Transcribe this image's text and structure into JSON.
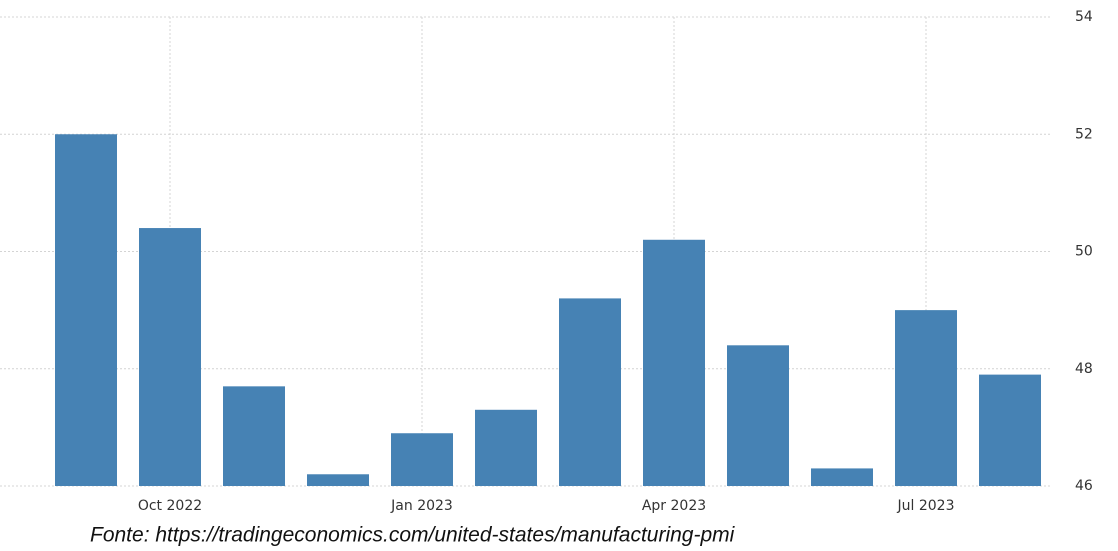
{
  "chart_data": {
    "type": "bar",
    "categories": [
      null,
      "Oct 2022",
      null,
      null,
      "Jan 2023",
      null,
      null,
      "Apr 2023",
      null,
      null,
      "Jul 2023",
      null
    ],
    "values": [
      52.0,
      50.4,
      47.7,
      46.2,
      46.9,
      47.3,
      49.2,
      50.2,
      48.4,
      46.3,
      49.0,
      47.9
    ],
    "color": "#4682b4",
    "ylim": [
      46,
      54
    ],
    "yticks": [
      46,
      48,
      50,
      52,
      54
    ],
    "grid": true,
    "source": "Fonte: https://tradingeconomics.com/united-states/manufacturing-pmi"
  }
}
